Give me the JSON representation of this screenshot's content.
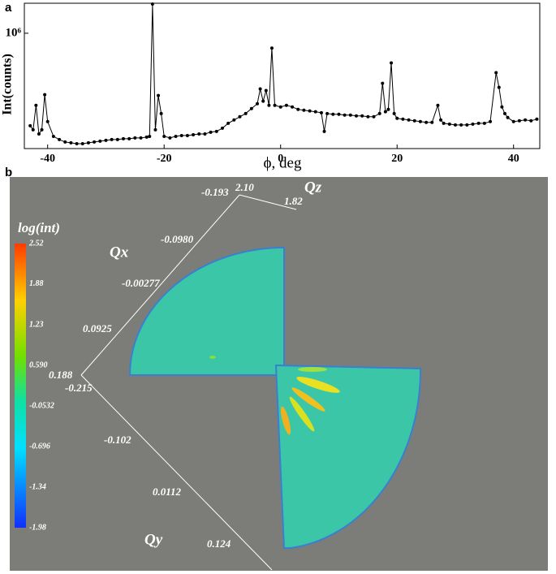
{
  "chart_data": {
    "type": "line",
    "panel_label": "a",
    "xlabel": "ϕ, deg",
    "ylabel": "Int(counts)",
    "color": "#000000",
    "x": [
      -43,
      -42.5,
      -42,
      -41.5,
      -41,
      -40.5,
      -40,
      -39,
      -38,
      -37,
      -36,
      -35,
      -34,
      -33,
      -32,
      -31,
      -30,
      -29,
      -28,
      -27,
      -26,
      -25,
      -24,
      -23,
      -22.5,
      -22,
      -21.5,
      -21,
      -20.5,
      -20,
      -19,
      -18,
      -17,
      -16,
      -15,
      -14,
      -13,
      -12,
      -11,
      -10,
      -9,
      -8,
      -7,
      -6,
      -5,
      -4,
      -3.5,
      -3,
      -2.5,
      -2,
      -1.5,
      -1,
      0,
      1,
      2,
      3,
      4,
      5,
      6,
      7,
      7.5,
      8,
      9,
      10,
      11,
      12,
      13,
      14,
      15,
      16,
      17,
      17.5,
      18,
      18.5,
      19,
      19.5,
      20,
      21,
      22,
      23,
      24,
      25,
      26,
      27,
      27.5,
      28,
      29,
      30,
      31,
      32,
      33,
      34,
      35,
      36,
      37,
      37.5,
      38,
      38.5,
      39,
      40,
      41,
      42,
      43,
      44
    ],
    "values": [
      198000,
      163000,
      375000,
      127000,
      163000,
      467000,
      234000,
      106000,
      78000,
      57000,
      50000,
      42000,
      42000,
      50000,
      57000,
      64000,
      71000,
      78000,
      78000,
      85000,
      85000,
      92000,
      92000,
      99000,
      106000,
      1253000,
      163000,
      460000,
      304000,
      106000,
      92000,
      106000,
      113000,
      113000,
      120000,
      127000,
      127000,
      142000,
      149000,
      177000,
      219000,
      248000,
      276000,
      304000,
      347000,
      389000,
      517000,
      411000,
      503000,
      375000,
      871000,
      375000,
      361000,
      375000,
      361000,
      340000,
      333000,
      326000,
      319000,
      311000,
      149000,
      304000,
      297000,
      297000,
      290000,
      290000,
      283000,
      283000,
      276000,
      276000,
      304000,
      566000,
      319000,
      340000,
      743000,
      304000,
      262000,
      255000,
      248000,
      241000,
      234000,
      227000,
      227000,
      375000,
      248000,
      219000,
      212000,
      205000,
      205000,
      205000,
      212000,
      219000,
      219000,
      234000,
      658000,
      531000,
      361000,
      304000,
      269000,
      234000,
      241000,
      248000,
      241000,
      255000
    ],
    "xlim": [
      -44,
      44.5
    ],
    "xticks": [
      -40,
      -20,
      0,
      20,
      40
    ],
    "ylim": [
      0,
      1260000
    ],
    "yticks": [
      {
        "value": 1000000,
        "label": "10⁶"
      }
    ]
  },
  "panel_b": {
    "panel_label": "b",
    "colorbar": {
      "title": "log(int)",
      "lim": [
        -1.98,
        2.52
      ],
      "ticks": [
        2.52,
        1.88,
        1.23,
        {
          "value": 0.59,
          "label": "0.590"
        },
        -0.0532,
        -0.696,
        -1.34,
        -1.98
      ]
    },
    "axes": {
      "qx": {
        "name": "Qx",
        "ticks": [
          "-0.193",
          "-0.0980",
          "-0.00277",
          "0.0925",
          "0.188"
        ]
      },
      "qy": {
        "name": "Qy",
        "ticks": [
          "-0.215",
          "-0.102",
          "0.0112",
          "0.124"
        ]
      },
      "qz": {
        "name": "Qz",
        "ticks": [
          "2.10",
          "1.82"
        ]
      }
    }
  }
}
